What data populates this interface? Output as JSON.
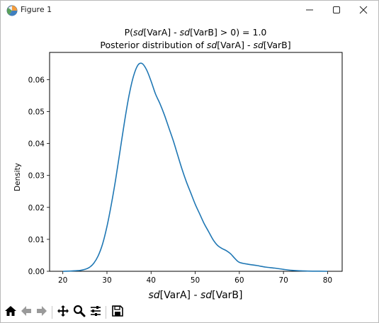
{
  "window": {
    "title": "Figure 1",
    "icons": [
      "figure-app-icon",
      "minimize-icon",
      "maximize-icon",
      "close-icon"
    ]
  },
  "toolbar": {
    "icons": [
      "home-icon",
      "back-arrow-icon",
      "forward-arrow-icon",
      "pan-icon",
      "zoom-icon",
      "configure-subplots-icon",
      "save-icon"
    ]
  },
  "chart_data": {
    "type": "line",
    "title_line1": "P(sd[VarA] - sd[VarB] > 0) = 1.0",
    "title_line2": "Posterior distribution of sd[VarA] - sd[VarB]",
    "xlabel": "sd[VarA] - sd[VarB]",
    "ylabel": "Density",
    "xlim": [
      17,
      83.3
    ],
    "ylim": [
      0,
      0.0685
    ],
    "xticks": [
      20,
      30,
      40,
      50,
      60,
      70,
      80
    ],
    "yticks": [
      0.0,
      0.01,
      0.02,
      0.03,
      0.04,
      0.05,
      0.06
    ],
    "ytick_labels": [
      "0.00",
      "0.01",
      "0.02",
      "0.03",
      "0.04",
      "0.05",
      "0.06"
    ],
    "grid": false,
    "color": "#1f77b4",
    "series": [
      {
        "x": [
          20,
          22,
          24,
          25,
          26,
          27,
          28,
          29,
          30,
          31,
          32,
          33,
          34,
          35,
          36,
          37,
          38,
          39,
          40,
          41,
          42,
          43,
          44,
          45,
          46,
          47,
          48,
          49,
          50,
          51,
          52,
          53,
          54,
          55,
          56,
          57,
          58,
          59,
          60,
          62,
          64,
          66,
          68,
          70,
          72,
          75,
          78,
          80
        ],
        "y": [
          0.0,
          0.0001,
          0.0003,
          0.0006,
          0.0012,
          0.0025,
          0.0048,
          0.0085,
          0.014,
          0.021,
          0.029,
          0.038,
          0.047,
          0.055,
          0.061,
          0.0645,
          0.065,
          0.063,
          0.0595,
          0.0555,
          0.0525,
          0.049,
          0.045,
          0.041,
          0.0365,
          0.032,
          0.028,
          0.0245,
          0.021,
          0.018,
          0.015,
          0.0125,
          0.01,
          0.0082,
          0.0072,
          0.0065,
          0.0055,
          0.004,
          0.0028,
          0.0022,
          0.0018,
          0.0013,
          0.001,
          0.0006,
          0.0003,
          0.0001,
          3e-05,
          0.0
        ]
      }
    ]
  }
}
